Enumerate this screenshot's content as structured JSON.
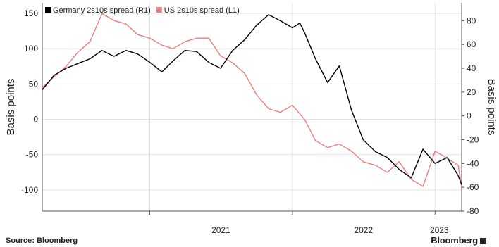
{
  "footer": {
    "source": "Source: Bloomberg",
    "brand": "Bloomberg"
  },
  "chart_data": {
    "type": "line",
    "title": "",
    "xlabel": "",
    "ylabel_left": "Basis points",
    "ylabel_right": "Basis points",
    "x_range": [
      "2020-04-01",
      "2023-03-10"
    ],
    "x_ticks": [
      {
        "label": "2021",
        "date": "2021-01-01"
      },
      {
        "label": "2022",
        "date": "2022-01-01"
      },
      {
        "label": "2023",
        "date": "2023-01-01"
      }
    ],
    "left_axis": {
      "min": -130,
      "max": 165,
      "ticks": [
        150,
        100,
        50,
        0,
        -50,
        -100
      ]
    },
    "right_axis": {
      "min": -80,
      "max": 95,
      "ticks": [
        80,
        60,
        40,
        20,
        0,
        -20,
        -40,
        -60,
        -80
      ]
    },
    "grid": true,
    "legend": {
      "position": "top-left"
    },
    "series": [
      {
        "name": "Germany 2s10s spread (R1)",
        "axis": "right",
        "color": "#000000",
        "points": [
          [
            "2020-04-01",
            22
          ],
          [
            "2020-05-01",
            34
          ],
          [
            "2020-06-01",
            40
          ],
          [
            "2020-07-01",
            44
          ],
          [
            "2020-08-01",
            48
          ],
          [
            "2020-09-01",
            55
          ],
          [
            "2020-10-01",
            50
          ],
          [
            "2020-11-01",
            55
          ],
          [
            "2020-12-01",
            52
          ],
          [
            "2021-01-01",
            45
          ],
          [
            "2021-02-01",
            37
          ],
          [
            "2021-03-01",
            46
          ],
          [
            "2021-04-01",
            55
          ],
          [
            "2021-05-01",
            54
          ],
          [
            "2021-06-01",
            45
          ],
          [
            "2021-07-01",
            40
          ],
          [
            "2021-08-01",
            55
          ],
          [
            "2021-09-01",
            64
          ],
          [
            "2021-10-01",
            76
          ],
          [
            "2021-11-01",
            85
          ],
          [
            "2021-12-01",
            80
          ],
          [
            "2022-01-01",
            74
          ],
          [
            "2022-01-20",
            78
          ],
          [
            "2022-02-01",
            70
          ],
          [
            "2022-03-01",
            48
          ],
          [
            "2022-04-01",
            28
          ],
          [
            "2022-05-01",
            42
          ],
          [
            "2022-06-01",
            5
          ],
          [
            "2022-07-01",
            -20
          ],
          [
            "2022-08-01",
            -30
          ],
          [
            "2022-09-01",
            -35
          ],
          [
            "2022-10-01",
            -45
          ],
          [
            "2022-11-01",
            -52
          ],
          [
            "2022-12-01",
            -28
          ],
          [
            "2023-01-01",
            -40
          ],
          [
            "2023-02-01",
            -35
          ],
          [
            "2023-03-01",
            -50
          ],
          [
            "2023-03-10",
            -58
          ]
        ]
      },
      {
        "name": "US 2s10s spread (L1)",
        "axis": "left",
        "color": "#e8817c",
        "points": [
          [
            "2020-04-01",
            45
          ],
          [
            "2020-05-01",
            60
          ],
          [
            "2020-06-01",
            75
          ],
          [
            "2020-07-01",
            95
          ],
          [
            "2020-08-01",
            110
          ],
          [
            "2020-09-01",
            150
          ],
          [
            "2020-10-01",
            140
          ],
          [
            "2020-11-01",
            135
          ],
          [
            "2020-12-01",
            120
          ],
          [
            "2021-01-01",
            115
          ],
          [
            "2021-02-01",
            105
          ],
          [
            "2021-03-01",
            100
          ],
          [
            "2021-04-01",
            110
          ],
          [
            "2021-05-01",
            115
          ],
          [
            "2021-06-01",
            115
          ],
          [
            "2021-07-01",
            90
          ],
          [
            "2021-08-01",
            80
          ],
          [
            "2021-09-01",
            65
          ],
          [
            "2021-10-01",
            35
          ],
          [
            "2021-11-01",
            15
          ],
          [
            "2021-12-01",
            10
          ],
          [
            "2022-01-01",
            20
          ],
          [
            "2022-02-01",
            0
          ],
          [
            "2022-03-01",
            -30
          ],
          [
            "2022-04-01",
            -40
          ],
          [
            "2022-05-01",
            -35
          ],
          [
            "2022-06-01",
            -45
          ],
          [
            "2022-07-01",
            -60
          ],
          [
            "2022-08-01",
            -65
          ],
          [
            "2022-09-01",
            -75
          ],
          [
            "2022-10-01",
            -60
          ],
          [
            "2022-11-01",
            -85
          ],
          [
            "2022-12-01",
            -95
          ],
          [
            "2023-01-01",
            -45
          ],
          [
            "2023-02-01",
            -55
          ],
          [
            "2023-03-01",
            -65
          ],
          [
            "2023-03-10",
            -95
          ]
        ]
      }
    ]
  }
}
